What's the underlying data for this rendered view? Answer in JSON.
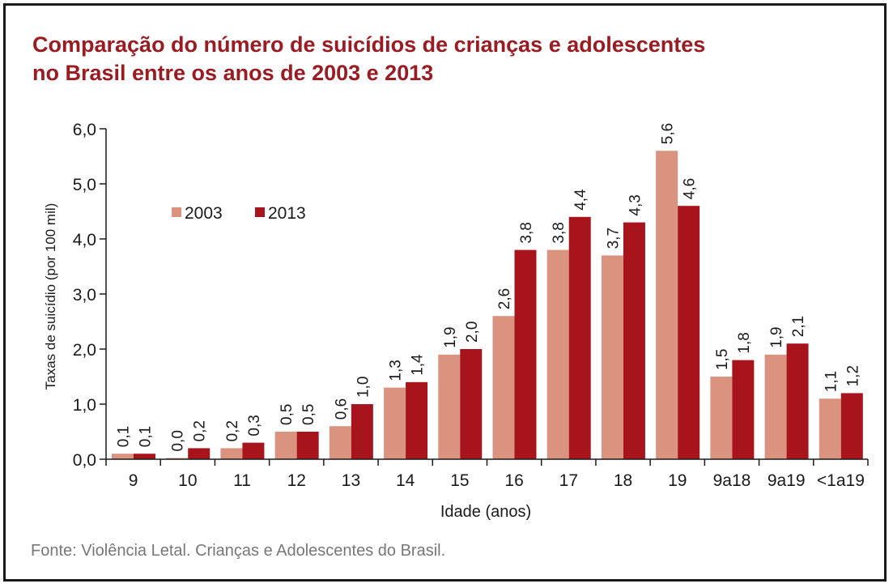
{
  "chart_data": {
    "type": "bar",
    "title": "Comparação do número de suicídios de crianças e adolescentes no Brasil entre os anos de 2003 e 2013",
    "title_lines": [
      "Comparação do número de suicídios de crianças e adolescentes",
      "no Brasil entre os anos de 2003 e 2013"
    ],
    "xlabel": "Idade (anos)",
    "ylabel": "Taxas de suicídio (por 100 mil)",
    "ylim": [
      0,
      6
    ],
    "yticks": [
      "0,0",
      "1,0",
      "2,0",
      "3,0",
      "4,0",
      "5,0",
      "6,0"
    ],
    "grid": false,
    "legend_position": "top-left",
    "categories": [
      "9",
      "10",
      "11",
      "12",
      "13",
      "14",
      "15",
      "16",
      "17",
      "18",
      "19",
      "9a18",
      "9a19",
      "<1a19"
    ],
    "series": [
      {
        "name": "2003",
        "color": "#d9937f",
        "values": [
          0.1,
          0.0,
          0.2,
          0.5,
          0.6,
          1.3,
          1.9,
          2.6,
          3.8,
          3.7,
          5.6,
          1.5,
          1.9,
          1.1
        ],
        "labels": [
          "0,1",
          "0,0",
          "0,2",
          "0,5",
          "0,6",
          "1,3",
          "1,9",
          "2,6",
          "3,8",
          "3,7",
          "5,6",
          "1,5",
          "1,9",
          "1,1"
        ]
      },
      {
        "name": "2013",
        "color": "#a8141c",
        "values": [
          0.1,
          0.2,
          0.3,
          0.5,
          1.0,
          1.4,
          2.0,
          3.8,
          4.4,
          4.3,
          4.6,
          1.8,
          2.1,
          1.2
        ],
        "labels": [
          "0,1",
          "0,2",
          "0,3",
          "0,5",
          "1,0",
          "1,4",
          "2,0",
          "3,8",
          "4,4",
          "4,3",
          "4,6",
          "1,8",
          "2,1",
          "1,2"
        ]
      }
    ]
  },
  "source": "Fonte: Violência Letal. Crianças e Adolescentes do Brasil."
}
